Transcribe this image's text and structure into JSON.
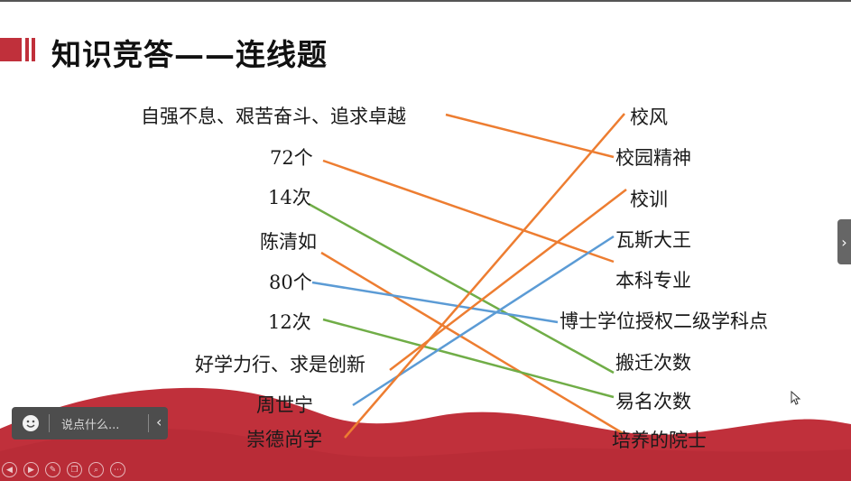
{
  "title": "知识竞答——连线题",
  "left_items": [
    "自强不息、艰苦奋斗、追求卓越",
    "72个",
    "14次",
    "陈清如",
    "80个",
    "12次",
    "好学力行、求是创新",
    "周世宁",
    "崇德尚学"
  ],
  "right_items": [
    "校风",
    "校园精神",
    "校训",
    "瓦斯大王",
    "本科专业",
    "博士学位授权二级学科点",
    "搬迁次数",
    "易名次数",
    "培养的院士"
  ],
  "connections": [
    {
      "from": "自强不息、艰苦奋斗、追求卓越",
      "to": "校园精神",
      "color": "#ed7d31"
    },
    {
      "from": "72个",
      "to": "本科专业",
      "color": "#ed7d31"
    },
    {
      "from": "14次",
      "to": "搬迁次数",
      "color": "#70ad47"
    },
    {
      "from": "陈清如",
      "to": "培养的院士",
      "color": "#ed7d31"
    },
    {
      "from": "80个",
      "to": "博士学位授权二级学科点",
      "color": "#5b9bd5"
    },
    {
      "from": "12次",
      "to": "易名次数",
      "color": "#70ad47"
    },
    {
      "from": "好学力行、求是创新",
      "to": "校训",
      "color": "#ed7d31"
    },
    {
      "from": "周世宁",
      "to": "瓦斯大王",
      "color": "#5b9bd5"
    },
    {
      "from": "崇德尚学",
      "to": "校风",
      "color": "#ed7d31"
    }
  ],
  "colors": {
    "accent": "#c0303b",
    "wave": "#c0303b"
  },
  "chat": {
    "placeholder": "说点什么...",
    "icon": "smile-icon",
    "collapse_icon": "chevron-left-icon"
  },
  "nav": {
    "next_icon": "chevron-right-icon"
  },
  "toolbar_icons": [
    "prev-icon",
    "next-icon",
    "pen-icon",
    "copy-icon",
    "zoom-icon",
    "more-icon"
  ]
}
